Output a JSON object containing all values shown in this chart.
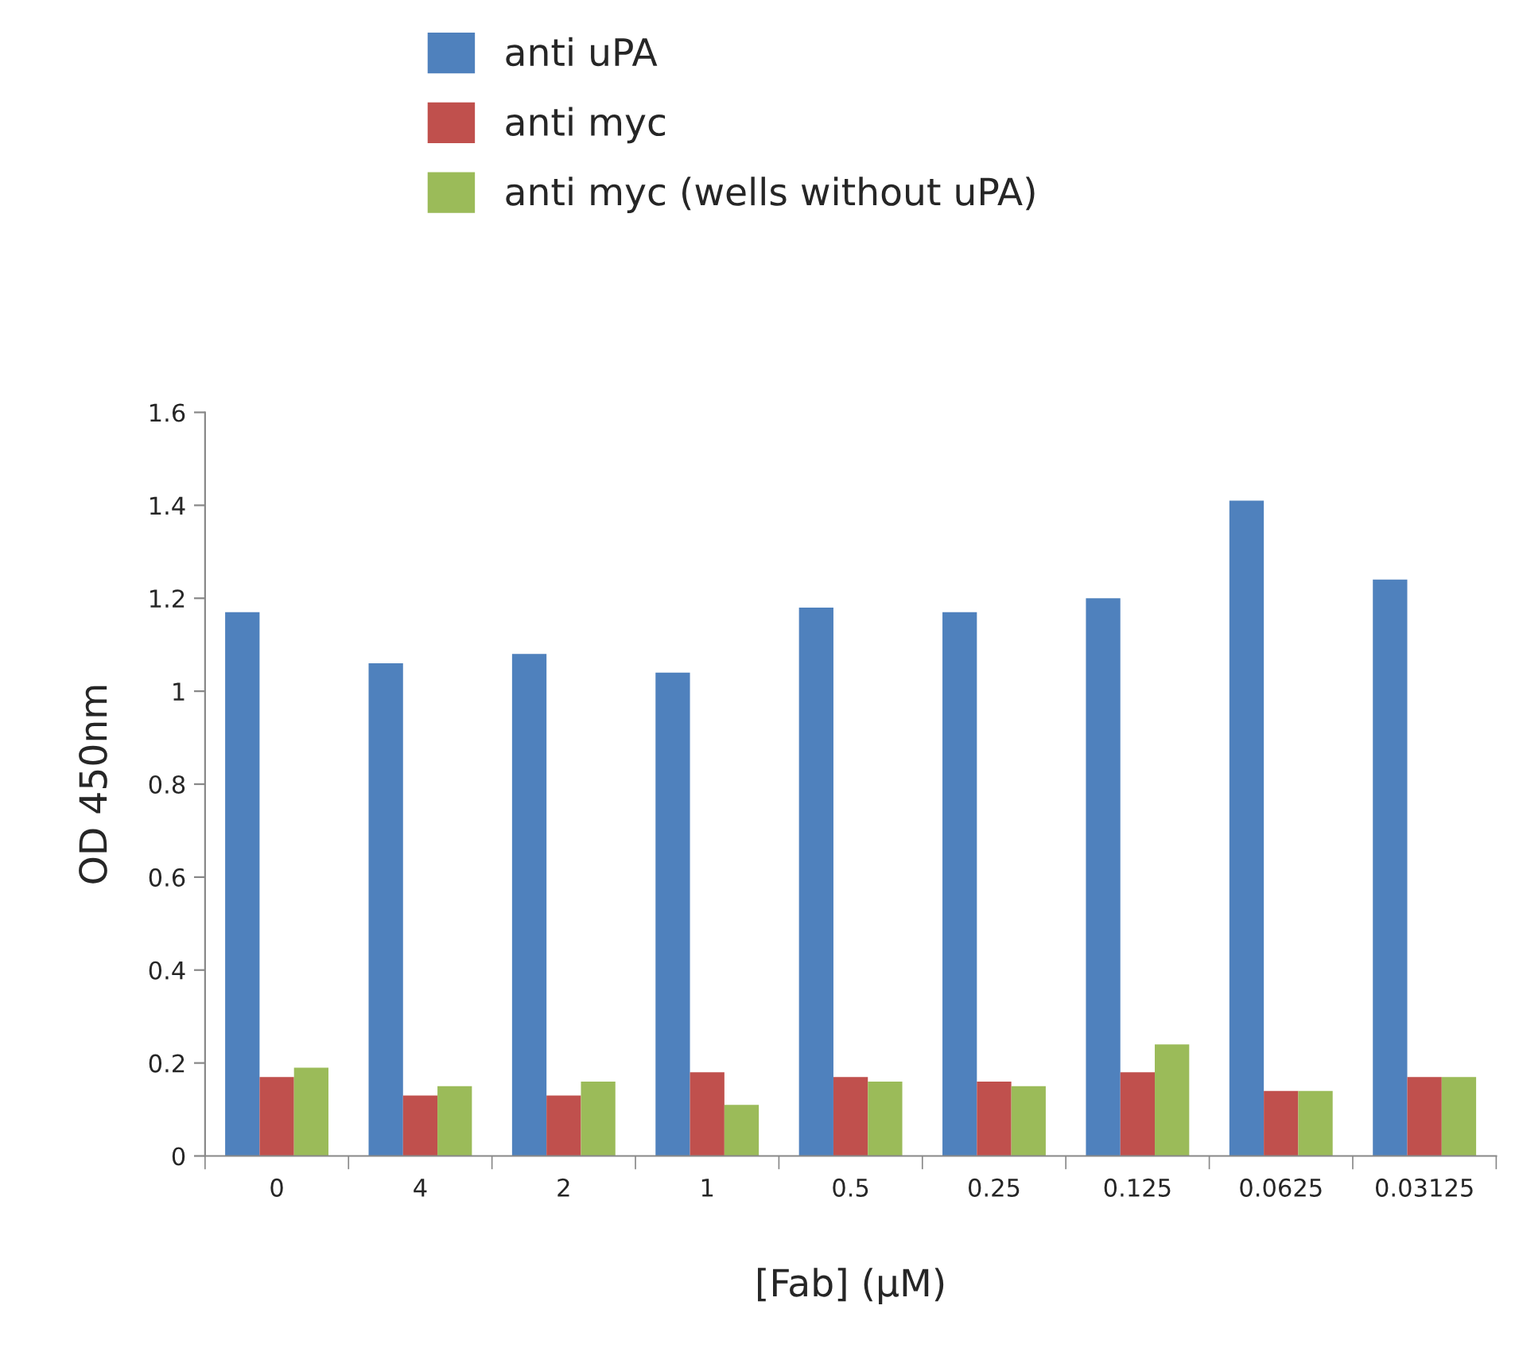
{
  "chart_data": {
    "type": "bar",
    "xlabel": "[Fab] (µM)",
    "ylabel": "OD 450nm",
    "categories": [
      "0",
      "4",
      "2",
      "1",
      "0.5",
      "0.25",
      "0.125",
      "0.0625",
      "0.03125"
    ],
    "series": [
      {
        "name": "anti uPA",
        "color": "#4f81bd",
        "values": [
          1.17,
          1.06,
          1.08,
          1.04,
          1.18,
          1.17,
          1.2,
          1.41,
          1.24
        ]
      },
      {
        "name": "anti myc",
        "color": "#c0504d",
        "values": [
          0.17,
          0.13,
          0.13,
          0.18,
          0.17,
          0.16,
          0.18,
          0.14,
          0.17
        ]
      },
      {
        "name": "anti myc (wells without uPA)",
        "color": "#9bbb59",
        "values": [
          0.19,
          0.15,
          0.16,
          0.11,
          0.16,
          0.15,
          0.24,
          0.14,
          0.17
        ]
      }
    ],
    "ylim": [
      0,
      1.6
    ],
    "yticks": [
      {
        "value": 0,
        "label": "0"
      },
      0.2,
      0.4,
      0.6,
      0.8,
      {
        "value": 1,
        "label": "1"
      },
      1.2,
      1.4,
      1.6
    ],
    "grid": false,
    "legend": "top"
  }
}
